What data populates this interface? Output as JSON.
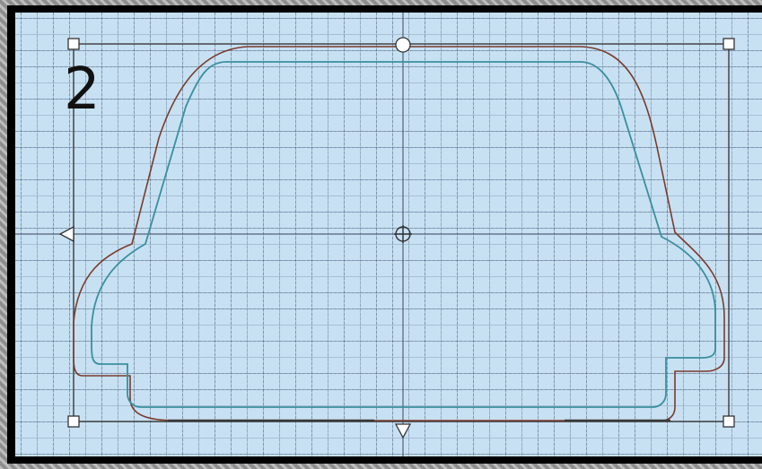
{
  "step_number": "2",
  "colors": {
    "canvas_background": "#c7e1f3",
    "grid_line": "#4a5a78",
    "selection_frame": "#444444",
    "outline_teal": "#3a8f9e",
    "outline_brown": "#7a3b2c",
    "handle_fill": "#ffffff",
    "frame_border": "#000000"
  },
  "icons": {
    "corner_handle": "square-handle-icon",
    "rotate_handle": "circle-handle-icon",
    "center_handle": "crosshair-icon",
    "side_handle_left": "triangle-left-icon",
    "side_handle_bottom": "triangle-down-icon"
  }
}
